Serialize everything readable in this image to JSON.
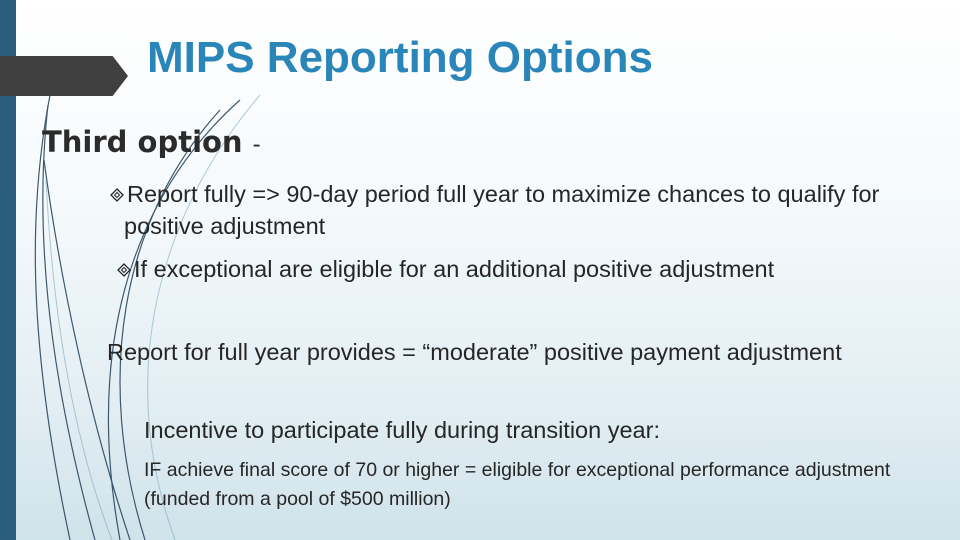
{
  "slide": {
    "title": "MIPS Reporting Options",
    "heading": "Third option",
    "heading_suffix": "-",
    "bullets": [
      {
        "icon": "diamond-outline-icon",
        "text": "Report fully => 90-day period full year to maximize chances to qualify for  positive adjustment"
      },
      {
        "icon": "diamond-outline-icon",
        "text": "If exceptional are eligible for an additional positive adjustment"
      }
    ],
    "paragraphs": [
      "Report for full year provides = “moderate” positive payment adjustment",
      "Incentive to participate fully during transition year:",
      "IF achieve final score of 70 or higher = eligible for exceptional performance adjustment (funded from a pool of $500 million)"
    ]
  },
  "theme": {
    "title_color": "#2a85b8",
    "side_bar_color": "#2d5d7e",
    "tab_color": "#3f3f3f",
    "text_color": "#262626"
  }
}
